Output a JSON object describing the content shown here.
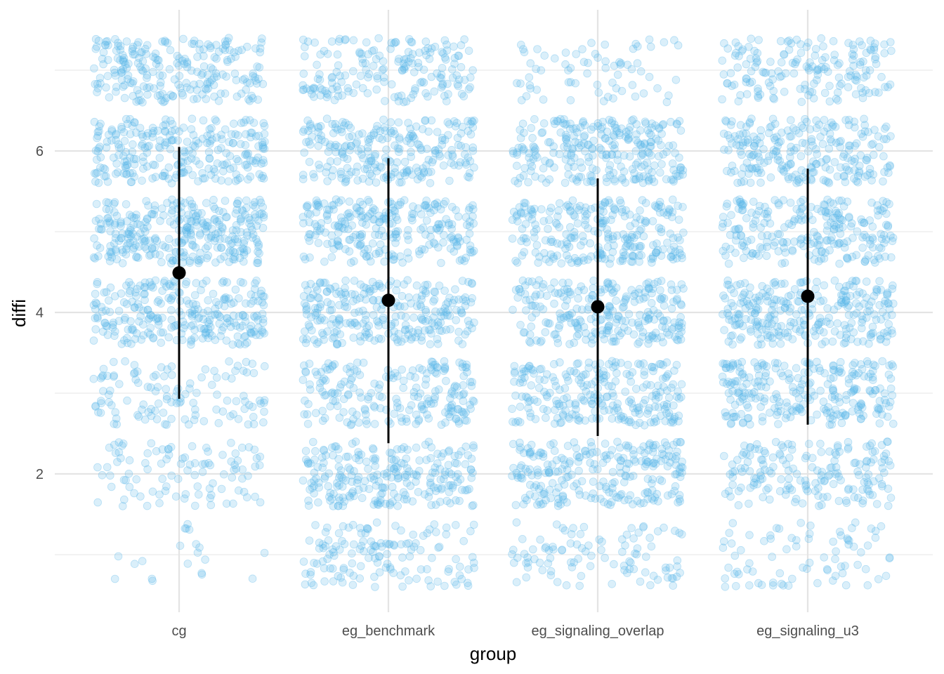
{
  "chart_data": {
    "type": "scatter",
    "title": "",
    "xlabel": "group",
    "ylabel": "diffi",
    "categories": [
      "cg",
      "eg_benchmark",
      "eg_signaling_overlap",
      "eg_signaling_u3"
    ],
    "ylim": [
      0.4,
      7.5
    ],
    "yticks": [
      2,
      4,
      6
    ],
    "grid": true,
    "legend": "none",
    "point_color": "#56B4E9",
    "summary_color": "#000000",
    "summary": [
      {
        "group": "cg",
        "mean": 4.49,
        "low": 2.93,
        "high": 6.05
      },
      {
        "group": "eg_benchmark",
        "mean": 4.15,
        "low": 2.38,
        "high": 5.91
      },
      {
        "group": "eg_signaling_overlap",
        "mean": 4.07,
        "low": 2.47,
        "high": 5.66
      },
      {
        "group": "eg_signaling_u3",
        "mean": 4.2,
        "low": 2.61,
        "high": 5.78
      }
    ],
    "jitter_levels": [
      1,
      2,
      3,
      4,
      5,
      6,
      7
    ],
    "level_counts": [
      [
        20,
        100,
        120,
        270,
        320,
        260,
        230
      ],
      [
        140,
        240,
        210,
        270,
        260,
        250,
        180
      ],
      [
        100,
        250,
        250,
        260,
        260,
        270,
        70
      ],
      [
        80,
        180,
        260,
        280,
        240,
        240,
        170
      ]
    ]
  }
}
